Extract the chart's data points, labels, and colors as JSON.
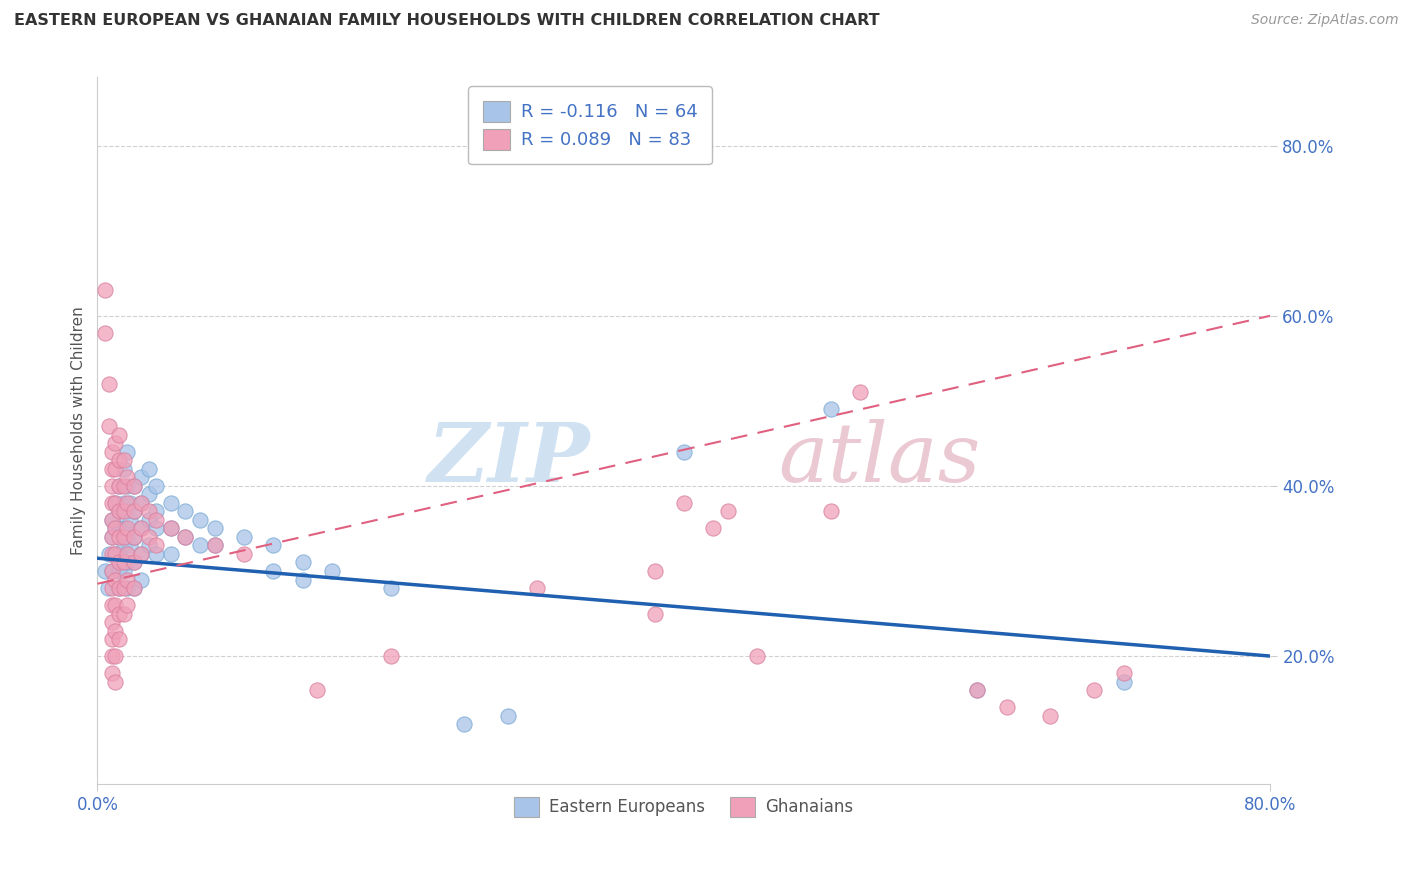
{
  "title": "EASTERN EUROPEAN VS GHANAIAN FAMILY HOUSEHOLDS WITH CHILDREN CORRELATION CHART",
  "source": "Source: ZipAtlas.com",
  "ylabel": "Family Households with Children",
  "ytick_values": [
    0.2,
    0.4,
    0.6,
    0.8
  ],
  "ytick_labels": [
    "20.0%",
    "40.0%",
    "60.0%",
    "80.0%"
  ],
  "xrange": [
    0.0,
    0.8
  ],
  "yrange": [
    0.05,
    0.88
  ],
  "eastern_european_color": "#a8c4e8",
  "eastern_european_edge": "#7aaad4",
  "ghanaian_color": "#f0a0b8",
  "ghanaian_edge": "#d880a0",
  "eastern_european_line_color": "#2060b0",
  "ghanaian_line_color": "#e06080",
  "watermark_zip_color": "#c8ddf0",
  "watermark_atlas_color": "#e8c0cc",
  "eastern_europeans": [
    [
      0.005,
      0.3
    ],
    [
      0.007,
      0.28
    ],
    [
      0.008,
      0.32
    ],
    [
      0.01,
      0.36
    ],
    [
      0.01,
      0.34
    ],
    [
      0.01,
      0.3
    ],
    [
      0.012,
      0.38
    ],
    [
      0.012,
      0.35
    ],
    [
      0.012,
      0.32
    ],
    [
      0.015,
      0.4
    ],
    [
      0.015,
      0.37
    ],
    [
      0.015,
      0.35
    ],
    [
      0.015,
      0.32
    ],
    [
      0.015,
      0.3
    ],
    [
      0.015,
      0.28
    ],
    [
      0.018,
      0.42
    ],
    [
      0.018,
      0.38
    ],
    [
      0.018,
      0.35
    ],
    [
      0.018,
      0.33
    ],
    [
      0.018,
      0.3
    ],
    [
      0.02,
      0.44
    ],
    [
      0.02,
      0.4
    ],
    [
      0.02,
      0.37
    ],
    [
      0.02,
      0.34
    ],
    [
      0.02,
      0.31
    ],
    [
      0.02,
      0.28
    ],
    [
      0.022,
      0.38
    ],
    [
      0.022,
      0.36
    ],
    [
      0.022,
      0.33
    ],
    [
      0.025,
      0.4
    ],
    [
      0.025,
      0.37
    ],
    [
      0.025,
      0.34
    ],
    [
      0.025,
      0.31
    ],
    [
      0.025,
      0.28
    ],
    [
      0.03,
      0.41
    ],
    [
      0.03,
      0.38
    ],
    [
      0.03,
      0.35
    ],
    [
      0.03,
      0.32
    ],
    [
      0.03,
      0.29
    ],
    [
      0.035,
      0.42
    ],
    [
      0.035,
      0.39
    ],
    [
      0.035,
      0.36
    ],
    [
      0.035,
      0.33
    ],
    [
      0.04,
      0.4
    ],
    [
      0.04,
      0.37
    ],
    [
      0.04,
      0.35
    ],
    [
      0.04,
      0.32
    ],
    [
      0.05,
      0.38
    ],
    [
      0.05,
      0.35
    ],
    [
      0.05,
      0.32
    ],
    [
      0.06,
      0.37
    ],
    [
      0.06,
      0.34
    ],
    [
      0.07,
      0.36
    ],
    [
      0.07,
      0.33
    ],
    [
      0.08,
      0.35
    ],
    [
      0.08,
      0.33
    ],
    [
      0.1,
      0.34
    ],
    [
      0.12,
      0.33
    ],
    [
      0.12,
      0.3
    ],
    [
      0.14,
      0.31
    ],
    [
      0.14,
      0.29
    ],
    [
      0.16,
      0.3
    ],
    [
      0.2,
      0.28
    ],
    [
      0.25,
      0.12
    ],
    [
      0.28,
      0.13
    ],
    [
      0.4,
      0.44
    ],
    [
      0.5,
      0.49
    ],
    [
      0.6,
      0.16
    ],
    [
      0.7,
      0.17
    ]
  ],
  "ghanaians": [
    [
      0.005,
      0.63
    ],
    [
      0.005,
      0.58
    ],
    [
      0.008,
      0.52
    ],
    [
      0.008,
      0.47
    ],
    [
      0.01,
      0.44
    ],
    [
      0.01,
      0.42
    ],
    [
      0.01,
      0.4
    ],
    [
      0.01,
      0.38
    ],
    [
      0.01,
      0.36
    ],
    [
      0.01,
      0.34
    ],
    [
      0.01,
      0.32
    ],
    [
      0.01,
      0.3
    ],
    [
      0.01,
      0.28
    ],
    [
      0.01,
      0.26
    ],
    [
      0.01,
      0.24
    ],
    [
      0.01,
      0.22
    ],
    [
      0.01,
      0.2
    ],
    [
      0.01,
      0.18
    ],
    [
      0.012,
      0.45
    ],
    [
      0.012,
      0.42
    ],
    [
      0.012,
      0.38
    ],
    [
      0.012,
      0.35
    ],
    [
      0.012,
      0.32
    ],
    [
      0.012,
      0.29
    ],
    [
      0.012,
      0.26
    ],
    [
      0.012,
      0.23
    ],
    [
      0.012,
      0.2
    ],
    [
      0.012,
      0.17
    ],
    [
      0.015,
      0.46
    ],
    [
      0.015,
      0.43
    ],
    [
      0.015,
      0.4
    ],
    [
      0.015,
      0.37
    ],
    [
      0.015,
      0.34
    ],
    [
      0.015,
      0.31
    ],
    [
      0.015,
      0.28
    ],
    [
      0.015,
      0.25
    ],
    [
      0.015,
      0.22
    ],
    [
      0.018,
      0.43
    ],
    [
      0.018,
      0.4
    ],
    [
      0.018,
      0.37
    ],
    [
      0.018,
      0.34
    ],
    [
      0.018,
      0.31
    ],
    [
      0.018,
      0.28
    ],
    [
      0.018,
      0.25
    ],
    [
      0.02,
      0.41
    ],
    [
      0.02,
      0.38
    ],
    [
      0.02,
      0.35
    ],
    [
      0.02,
      0.32
    ],
    [
      0.02,
      0.29
    ],
    [
      0.02,
      0.26
    ],
    [
      0.025,
      0.4
    ],
    [
      0.025,
      0.37
    ],
    [
      0.025,
      0.34
    ],
    [
      0.025,
      0.31
    ],
    [
      0.025,
      0.28
    ],
    [
      0.03,
      0.38
    ],
    [
      0.03,
      0.35
    ],
    [
      0.03,
      0.32
    ],
    [
      0.035,
      0.37
    ],
    [
      0.035,
      0.34
    ],
    [
      0.04,
      0.36
    ],
    [
      0.04,
      0.33
    ],
    [
      0.05,
      0.35
    ],
    [
      0.06,
      0.34
    ],
    [
      0.08,
      0.33
    ],
    [
      0.1,
      0.32
    ],
    [
      0.15,
      0.16
    ],
    [
      0.2,
      0.2
    ],
    [
      0.3,
      0.28
    ],
    [
      0.38,
      0.3
    ],
    [
      0.38,
      0.25
    ],
    [
      0.4,
      0.38
    ],
    [
      0.42,
      0.35
    ],
    [
      0.43,
      0.37
    ],
    [
      0.45,
      0.2
    ],
    [
      0.5,
      0.37
    ],
    [
      0.52,
      0.51
    ],
    [
      0.6,
      0.16
    ],
    [
      0.62,
      0.14
    ],
    [
      0.65,
      0.13
    ],
    [
      0.68,
      0.16
    ],
    [
      0.7,
      0.18
    ]
  ]
}
